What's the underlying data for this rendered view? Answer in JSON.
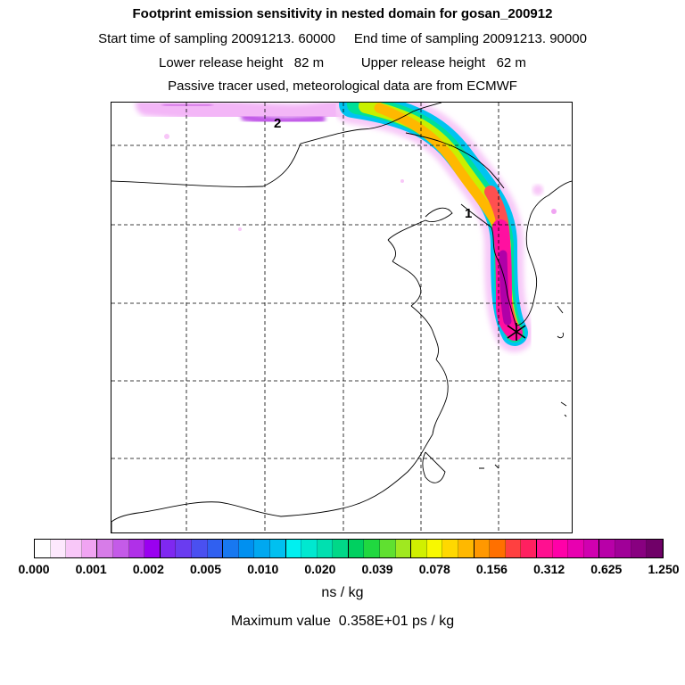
{
  "header": {
    "title": "Footprint emission sensitivity in nested domain for gosan_200912",
    "sampling_line": "Start time of sampling 20091213. 60000     End time of sampling 20091213. 90000",
    "release_line": "Lower release height   82 m          Upper release height   62 m",
    "tracer_line": "Passive tracer used, meteorological data are from ECMWF"
  },
  "map": {
    "labels": [
      "1",
      "2"
    ],
    "receptor_marker": "x-marker"
  },
  "colorbar": {
    "tick_labels": [
      "0.000",
      "0.001",
      "0.002",
      "0.005",
      "0.010",
      "0.020",
      "0.039",
      "0.078",
      "0.156",
      "0.312",
      "0.625",
      "1.250"
    ],
    "colors": [
      "#ffffff",
      "#fde8fd",
      "#f8c7f8",
      "#f0a4f2",
      "#d77ce8",
      "#c45be8",
      "#b030e8",
      "#9a00f0",
      "#7f28f0",
      "#6a3cf0",
      "#4a50f0",
      "#3060f0",
      "#1878f0",
      "#0090f0",
      "#00a8f0",
      "#00c0f0",
      "#00f0f0",
      "#00e8d0",
      "#00e0b0",
      "#00d888",
      "#00d060",
      "#20d840",
      "#60e030",
      "#a0e820",
      "#d0f000",
      "#f8f800",
      "#ffd800",
      "#ffb800",
      "#ff9800",
      "#ff7000",
      "#ff4040",
      "#ff2060",
      "#ff1090",
      "#ff00a8",
      "#e800b0",
      "#d000b0",
      "#b800a8",
      "#a00098",
      "#880080",
      "#700068"
    ],
    "unit_label": "ns / kg",
    "max_label": "Maximum value  0.358E+01 ps / kg"
  }
}
